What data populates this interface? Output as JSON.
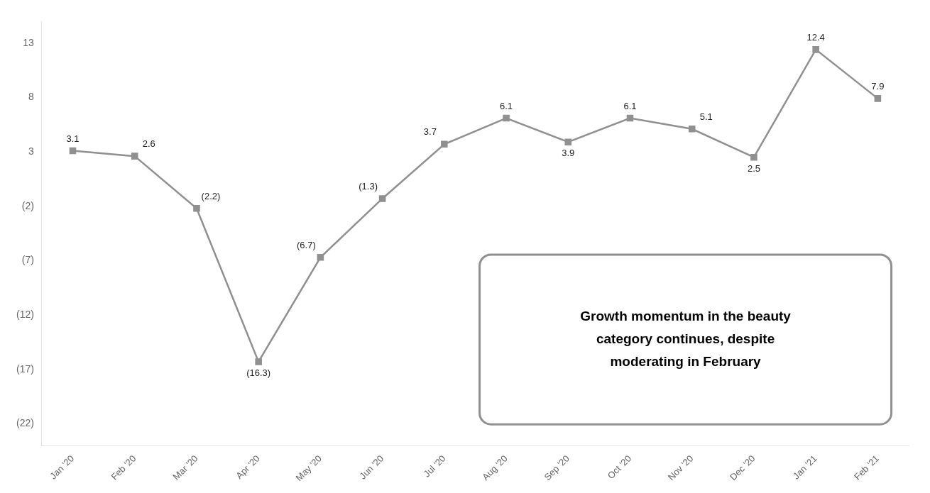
{
  "chart_data": {
    "type": "line",
    "categories": [
      "Jan '20",
      "Feb '20",
      "Mar '20",
      "Apr '20",
      "May '20",
      "Jun '20",
      "Jul '20",
      "Aug '20",
      "Sep '20",
      "Oct '20",
      "Nov '20",
      "Dec '20",
      "Jan '21",
      "Feb '21"
    ],
    "values": [
      3.1,
      2.6,
      -2.2,
      -16.3,
      -6.7,
      -1.3,
      3.7,
      6.1,
      3.9,
      6.1,
      5.1,
      2.5,
      12.4,
      7.9
    ],
    "value_labels": [
      "3.1",
      "2.6",
      "(2.2)",
      "(16.3)",
      "(6.7)",
      "(1.3)",
      "3.7",
      "6.1",
      "3.9",
      "6.1",
      "5.1",
      "2.5",
      "12.4",
      "7.9"
    ],
    "data_labels": true,
    "color": "#909090",
    "marker": "square",
    "ylim": [
      -24,
      15
    ],
    "yticks": [
      13,
      8,
      3,
      {
        "value": -2,
        "label": "(2)"
      },
      {
        "value": -7,
        "label": "(7)"
      },
      {
        "value": -12,
        "label": "(12)"
      },
      {
        "value": -17,
        "label": "(17)"
      },
      {
        "value": -22,
        "label": "(22)"
      }
    ],
    "grid": false,
    "annotations": [
      "Growth momentum in the beauty\ncategory continues, despite\nmoderating in February"
    ]
  }
}
